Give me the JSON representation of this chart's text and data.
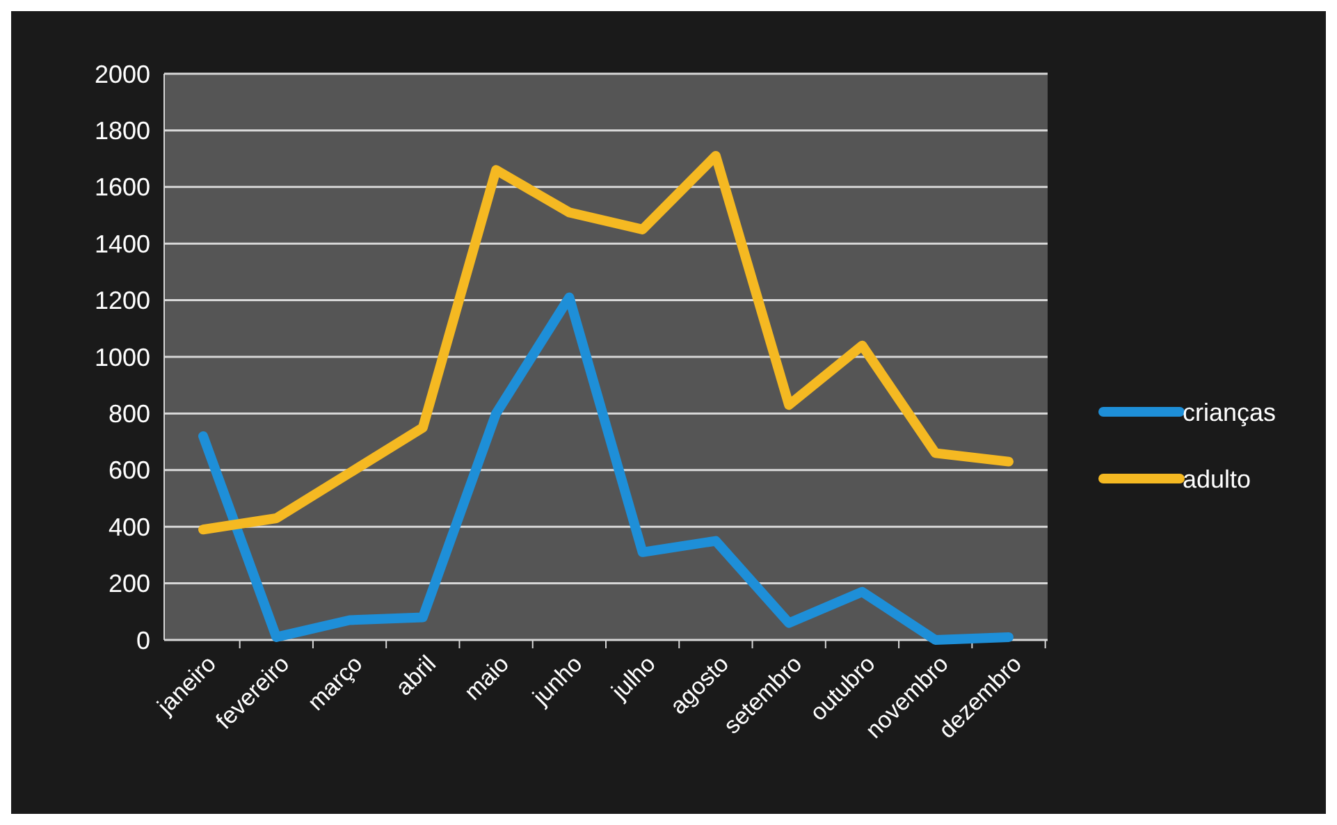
{
  "chart_data": {
    "type": "line",
    "categories": [
      "janeiro",
      "fevereiro",
      "março",
      "abril",
      "maio",
      "junho",
      "julho",
      "agosto",
      "setembro",
      "outubro",
      "novembro",
      "dezembro"
    ],
    "series": [
      {
        "name": "crianças",
        "color": "#1e8fd8",
        "values": [
          720,
          10,
          70,
          80,
          800,
          1210,
          310,
          350,
          60,
          170,
          0,
          10
        ]
      },
      {
        "name": "adulto",
        "color": "#f5b922",
        "values": [
          390,
          430,
          590,
          750,
          1660,
          1510,
          1450,
          1710,
          830,
          1040,
          660,
          630
        ]
      }
    ],
    "ylim": [
      0,
      2000
    ],
    "yticks": [
      0,
      200,
      400,
      600,
      800,
      1000,
      1200,
      1400,
      1600,
      1800,
      2000
    ],
    "grid": "y",
    "legend": "right",
    "marker": "none",
    "line_style": "solid"
  }
}
